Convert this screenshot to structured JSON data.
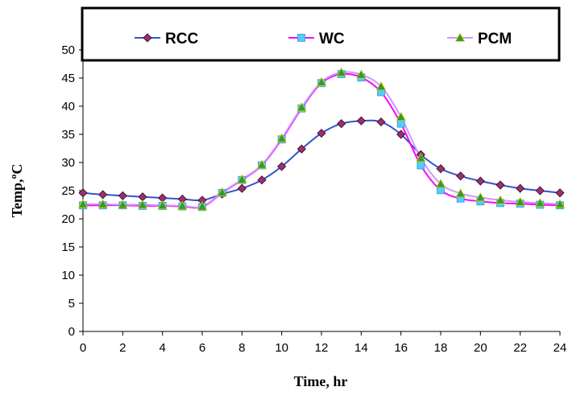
{
  "chart_data": {
    "type": "line",
    "xlabel": "Time, hr",
    "ylabel": "Temp,ºC",
    "xlim": [
      0,
      24
    ],
    "ylim": [
      0,
      50
    ],
    "x_ticks": [
      0,
      2,
      4,
      6,
      8,
      10,
      12,
      14,
      16,
      18,
      20,
      22,
      24
    ],
    "y_ticks": [
      0,
      5,
      10,
      15,
      20,
      25,
      30,
      35,
      40,
      45,
      50
    ],
    "legend_position": "top",
    "grid": false,
    "x": [
      0,
      1,
      2,
      3,
      4,
      5,
      6,
      7,
      8,
      9,
      10,
      11,
      12,
      13,
      14,
      15,
      16,
      17,
      18,
      19,
      20,
      21,
      22,
      23,
      24
    ],
    "series": [
      {
        "name": "RCC",
        "color": "#3355cc",
        "marker": "diamond",
        "marker_color": "#993366",
        "values": [
          24.6,
          24.3,
          24.1,
          23.9,
          23.7,
          23.5,
          23.3,
          24.4,
          25.4,
          26.9,
          29.3,
          32.4,
          35.2,
          36.9,
          37.4,
          37.2,
          35.0,
          31.4,
          28.9,
          27.6,
          26.7,
          26.0,
          25.4,
          25.0,
          24.6
        ]
      },
      {
        "name": "WC",
        "color": "#ff00ff",
        "marker": "square",
        "marker_color": "#55ccff",
        "values": [
          22.4,
          22.4,
          22.4,
          22.3,
          22.3,
          22.2,
          22.1,
          24.6,
          26.9,
          29.5,
          34.1,
          39.6,
          44.1,
          45.7,
          45.1,
          42.5,
          36.9,
          29.5,
          25.1,
          23.6,
          23.1,
          22.8,
          22.7,
          22.5,
          22.4
        ]
      },
      {
        "name": "PCM",
        "color": "#cc99ff",
        "marker": "triangle",
        "marker_color": "#339933",
        "values": [
          22.6,
          22.6,
          22.5,
          22.5,
          22.4,
          22.3,
          22.2,
          24.7,
          27.0,
          29.6,
          34.3,
          39.8,
          44.3,
          46.0,
          45.6,
          43.5,
          38.1,
          30.8,
          26.2,
          24.5,
          23.8,
          23.3,
          23.0,
          22.8,
          22.6
        ]
      }
    ]
  }
}
